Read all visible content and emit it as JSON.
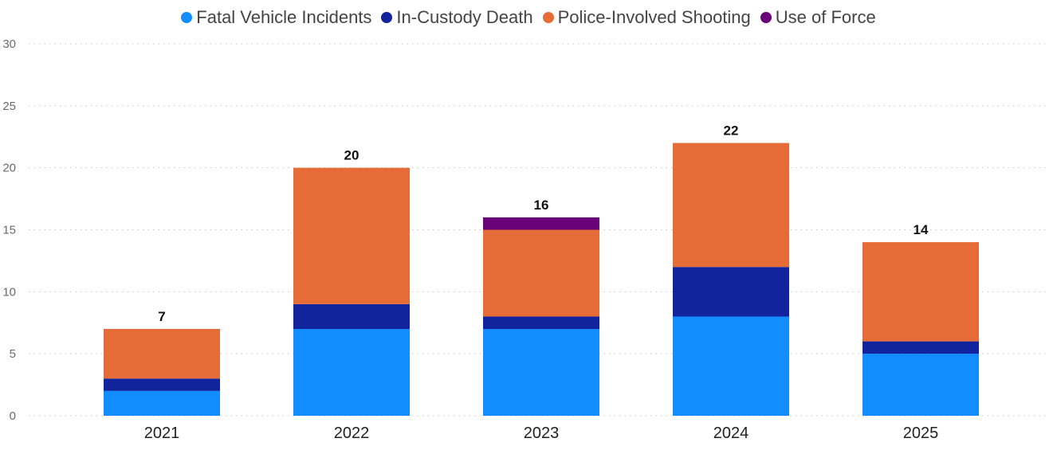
{
  "chart_data": {
    "type": "bar",
    "stacked": true,
    "title": "",
    "xlabel": "",
    "ylabel": "",
    "ylim": [
      0,
      30
    ],
    "yticks": [
      0,
      5,
      10,
      15,
      20,
      25,
      30
    ],
    "grid": true,
    "legend_position": "top-center",
    "categories": [
      "2021",
      "2022",
      "2023",
      "2024",
      "2025"
    ],
    "series": [
      {
        "name": "Fatal Vehicle Incidents",
        "color": "#118DFF",
        "values": [
          2,
          7,
          7,
          8,
          5
        ]
      },
      {
        "name": "In-Custody Death",
        "color": "#12239E",
        "values": [
          1,
          2,
          1,
          4,
          1
        ]
      },
      {
        "name": "Police-Involved Shooting",
        "color": "#E66C37",
        "values": [
          4,
          11,
          7,
          10,
          8
        ]
      },
      {
        "name": "Use of Force",
        "color": "#6B007B",
        "values": [
          0,
          0,
          1,
          0,
          0
        ]
      }
    ],
    "totals": [
      7,
      20,
      16,
      22,
      14
    ]
  }
}
